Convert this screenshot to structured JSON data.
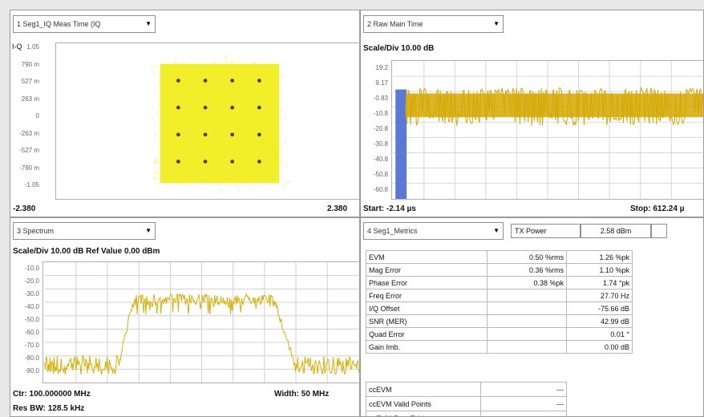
{
  "panes": {
    "p1": {
      "selector": "1 Seg1_IQ Meas Time (IQ",
      "ylabel": "I-Q",
      "yticks": [
        "1.05",
        "790 m",
        "527 m",
        "263 m",
        "0",
        "-263 m",
        "-527 m",
        "-790 m",
        "-1.05"
      ],
      "xmin": "-2.380",
      "xmax": "2.380"
    },
    "p2": {
      "selector": "2 Raw Main Time",
      "scale": "Scale/Div 10.00 dB",
      "yticks": [
        "19.2",
        "9.17",
        "-0.83",
        "-10.8",
        "-20.8",
        "-30.8",
        "-40.8",
        "-50.8",
        "-60.8"
      ],
      "start": "Start: -2.14 µs",
      "stop": "Stop: 612.24 µ"
    },
    "p3": {
      "selector": "3 Spectrum",
      "scale": "Scale/Div 10.00 dB Ref Value 0.00 dBm",
      "yticks": [
        "-10.0",
        "-20.0",
        "-30.0",
        "-40.0",
        "-50.0",
        "-60.0",
        "-70.0",
        "-80.0",
        "-90.0"
      ],
      "center": "Ctr: 100.000000 MHz",
      "width": "Width: 50 MHz",
      "rbw": "Res BW: 128.5 kHz"
    },
    "p4": {
      "selector": "4 Seg1_Metrics",
      "txpower_label": "TX Power",
      "txpower_value": "2.58 dBm",
      "rows": [
        {
          "label": "EVM",
          "v1": "0.50 %rms",
          "v2": "1.26 %pk"
        },
        {
          "label": "Mag Error",
          "v1": "0.36 %rms",
          "v2": "1.10 %pk"
        },
        {
          "label": "Phase Error",
          "v1": "0.38 %pk",
          "v2": "1.74 °pk"
        },
        {
          "label": "Freq Error",
          "v1": "",
          "v2": "27.70 Hz"
        },
        {
          "label": "I/Q Offset",
          "v1": "",
          "v2": "-75.66 dB"
        },
        {
          "label": "SNR (MER)",
          "v1": "",
          "v2": "42.99 dB"
        },
        {
          "label": "Quad Error",
          "v1": "",
          "v2": "0.01 °"
        },
        {
          "label": "Gain Imb.",
          "v1": "",
          "v2": "0.00 dB"
        }
      ],
      "cc_rows": [
        {
          "label": "ccEVM",
          "value": "---"
        },
        {
          "label": "ccEVM Valid Points",
          "value": "---"
        },
        {
          "label": "ccEVM Rms Table",
          "value": "---"
        }
      ]
    }
  },
  "colors": {
    "constellation": "#f2ee2a",
    "trace": "#d4a800",
    "spectrum": "#d8b000",
    "marker": "#5a78d8"
  }
}
